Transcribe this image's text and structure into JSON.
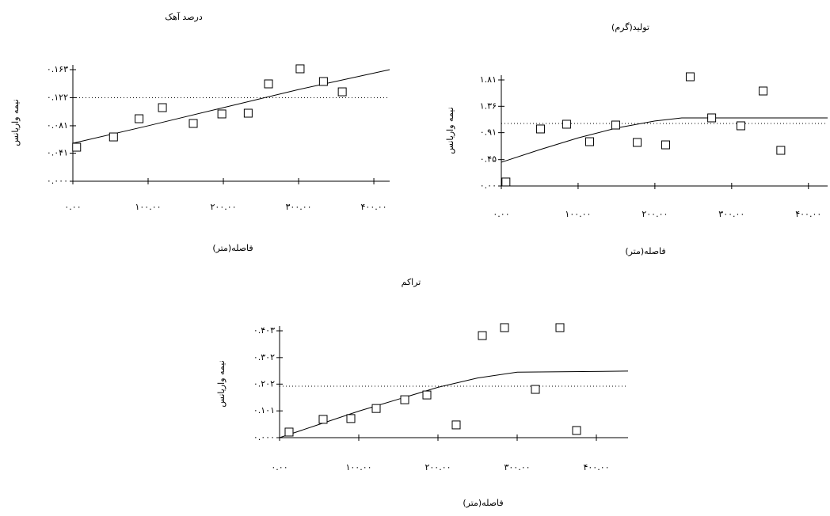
{
  "chart_data": [
    {
      "type": "scatter",
      "title": "درصد آهک",
      "ylabel": "نیمه واریانس",
      "xlabel": "فاصله(متر)",
      "x": [
        5,
        54,
        88,
        119,
        160,
        198,
        233,
        260,
        302,
        333,
        358
      ],
      "values": [
        0.0497,
        0.0647,
        0.0913,
        0.1075,
        0.0844,
        0.0983,
        0.0994,
        0.1422,
        0.1642,
        0.1457,
        0.1306
      ],
      "model_x": [
        0,
        100,
        200,
        300,
        421
      ],
      "model_y": [
        0.0555,
        0.081,
        0.1075,
        0.134,
        0.163
      ],
      "sill": 0.122,
      "color": "#000000",
      "xlim": [
        0,
        421
      ],
      "ylim": [
        0,
        0.163
      ],
      "xticks": [
        {
          "value": 0,
          "label": "۰.۰۰"
        },
        {
          "value": 100,
          "label": "۱۰۰.۰۰"
        },
        {
          "value": 200,
          "label": "۲۰۰.۰۰"
        },
        {
          "value": 300,
          "label": "۳۰۰.۰۰"
        },
        {
          "value": 400,
          "label": "۴۰۰.۰۰"
        }
      ],
      "yticks": [
        {
          "value": 0,
          "label": "۰.۰۰۰"
        },
        {
          "value": 0.041,
          "label": "۰.۰۴۱"
        },
        {
          "value": 0.081,
          "label": "۰.۰۸۱"
        },
        {
          "value": 0.122,
          "label": "۰.۱۲۲"
        },
        {
          "value": 0.163,
          "label": "۰.۱۶۳"
        }
      ]
    },
    {
      "type": "scatter",
      "title": "تولید(گرم)",
      "ylabel": "نیمه واریانس",
      "xlabel": "فاصله(متر)",
      "x": [
        6,
        51,
        85,
        115,
        149,
        177,
        214,
        246,
        274,
        312,
        341,
        364
      ],
      "values": [
        0.068,
        0.973,
        1.054,
        0.756,
        1.04,
        0.743,
        0.702,
        1.864,
        1.162,
        1.027,
        1.621,
        0.608
      ],
      "model_x": [
        0,
        50,
        100,
        150,
        200,
        235,
        425
      ],
      "model_y": [
        0.405,
        0.62,
        0.82,
        0.99,
        1.11,
        1.162,
        1.162
      ],
      "sill": 1.067,
      "color": "#000000",
      "xlim": [
        0,
        425
      ],
      "ylim": [
        0,
        1.81
      ],
      "xticks": [
        {
          "value": 0,
          "label": "۰.۰۰"
        },
        {
          "value": 100,
          "label": "۱۰۰.۰۰"
        },
        {
          "value": 200,
          "label": "۲۰۰.۰۰"
        },
        {
          "value": 300,
          "label": "۳۰۰.۰۰"
        },
        {
          "value": 400,
          "label": "۴۰۰.۰۰"
        }
      ],
      "yticks": [
        {
          "value": 0,
          "label": "۰.۰۰"
        },
        {
          "value": 0.45,
          "label": "۰.۴۵"
        },
        {
          "value": 0.91,
          "label": "۰.۹۱"
        },
        {
          "value": 1.36,
          "label": "۱.۳۶"
        },
        {
          "value": 1.81,
          "label": "۱.۸۱"
        }
      ]
    },
    {
      "type": "scatter",
      "title": "تراکم",
      "ylabel": "نیمه واریانس",
      "xlabel": "فاصله(متر)",
      "x": [
        12,
        55,
        90,
        122,
        158,
        186,
        223,
        256,
        284,
        323,
        354,
        375
      ],
      "values": [
        0.021,
        0.069,
        0.072,
        0.11,
        0.143,
        0.161,
        0.048,
        0.385,
        0.415,
        0.182,
        0.415,
        0.027
      ],
      "model_x": [
        0,
        50,
        100,
        150,
        200,
        250,
        300,
        440
      ],
      "model_y": [
        0,
        0.05,
        0.1,
        0.145,
        0.19,
        0.225,
        0.247,
        0.251
      ],
      "sill": 0.194,
      "color": "#000000",
      "xlim": [
        0,
        440
      ],
      "ylim": [
        0,
        0.403
      ],
      "xticks": [
        {
          "value": 0,
          "label": "۰.۰۰"
        },
        {
          "value": 100,
          "label": "۱۰۰.۰۰"
        },
        {
          "value": 200,
          "label": "۲۰۰.۰۰"
        },
        {
          "value": 300,
          "label": "۳۰۰.۰۰"
        },
        {
          "value": 400,
          "label": "۴۰۰.۰۰"
        }
      ],
      "yticks": [
        {
          "value": 0,
          "label": "۰.۰۰۰"
        },
        {
          "value": 0.101,
          "label": "۰.۱۰۱"
        },
        {
          "value": 0.202,
          "label": "۰.۲۰۲"
        },
        {
          "value": 0.302,
          "label": "۰.۳۰۲"
        },
        {
          "value": 0.403,
          "label": "۰.۴۰۳"
        }
      ]
    }
  ]
}
